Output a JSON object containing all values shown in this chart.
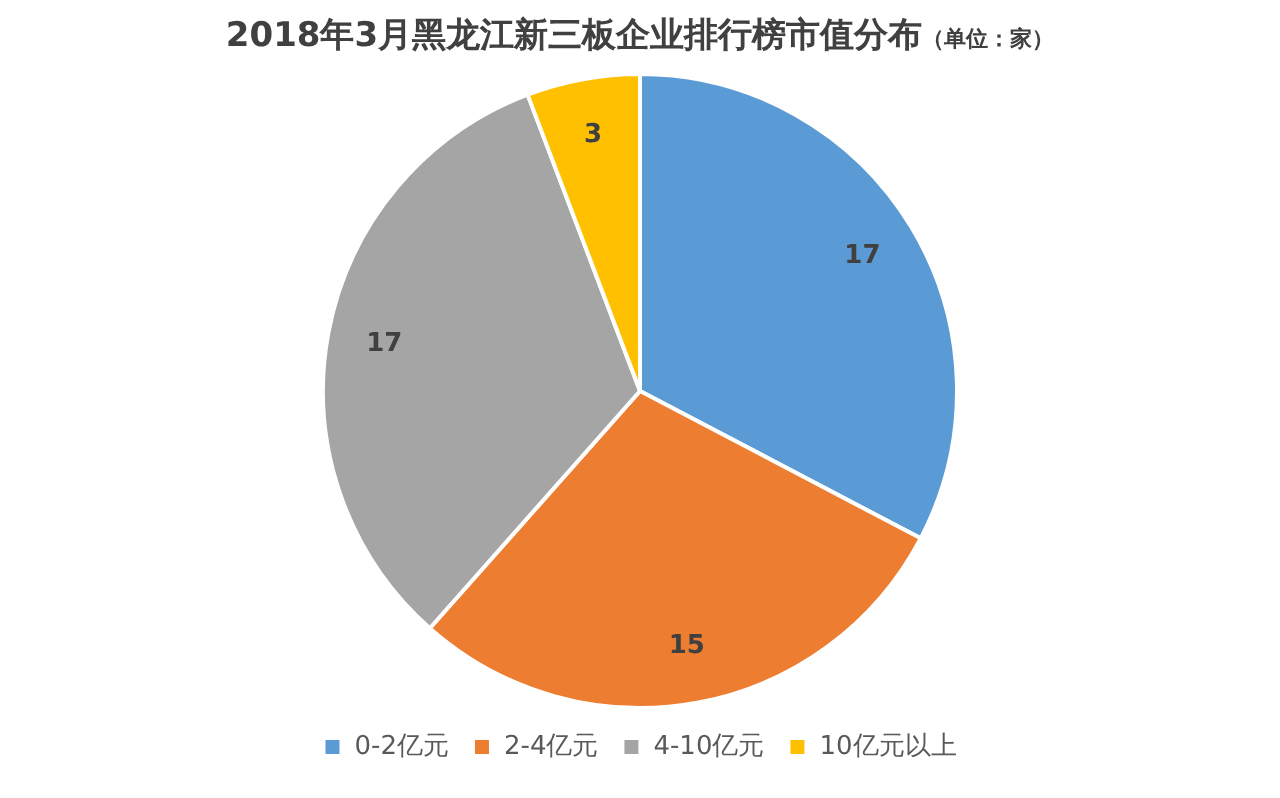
{
  "chart_data": {
    "type": "pie",
    "title": "2018年3月黑龙江新三板企业排行榜市值分布",
    "subtitle": "（单位：家）",
    "categories": [
      "0-2亿元",
      "2-4亿元",
      "4-10亿元",
      "10亿元以上"
    ],
    "values": [
      17,
      15,
      17,
      3
    ],
    "colors": [
      "#5b9bd5",
      "#ed7d31",
      "#a5a5a5",
      "#ffc000"
    ],
    "data_labels": true,
    "legend": "bottom"
  }
}
